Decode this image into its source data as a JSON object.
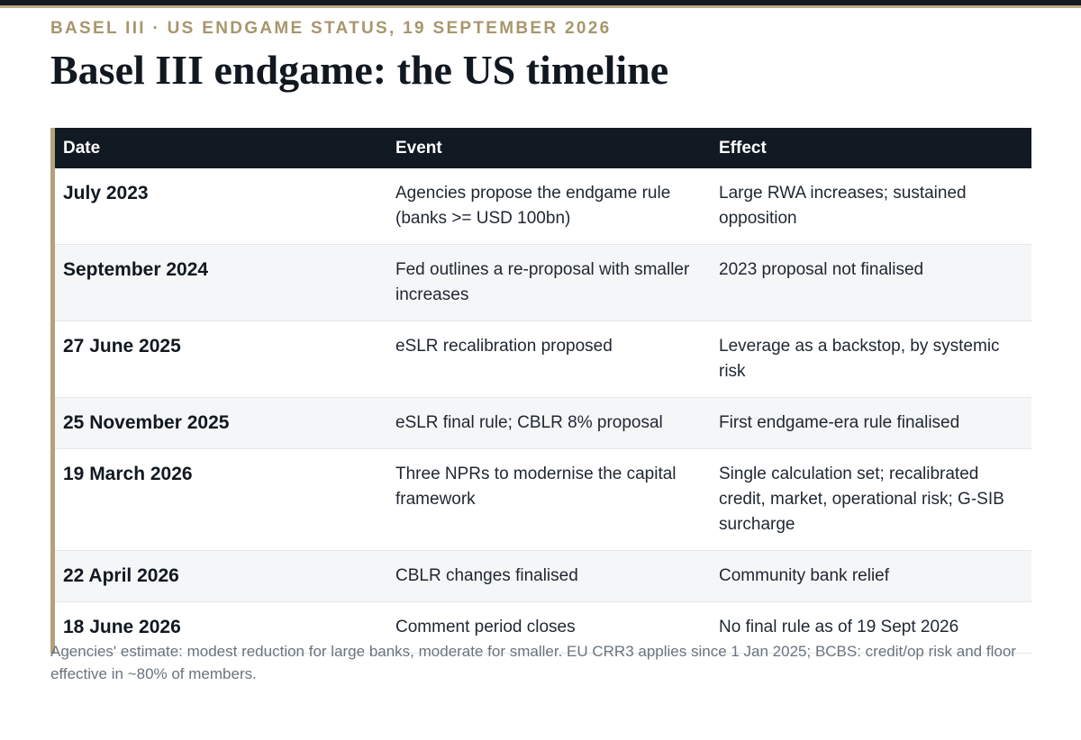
{
  "kicker": "BASEL III · US ENDGAME STATUS, 19 SEPTEMBER 2026",
  "title": "Basel III endgame: the US timeline",
  "table": {
    "headers": {
      "date": "Date",
      "event": "Event",
      "effect": "Effect"
    },
    "rows": [
      {
        "date": "July 2023",
        "event": "Agencies propose the endgame rule (banks >= USD 100bn)",
        "effect": "Large RWA increases; sustained opposition"
      },
      {
        "date": "September 2024",
        "event": "Fed outlines a re-proposal with smaller increases",
        "effect": "2023 proposal not finalised"
      },
      {
        "date": "27 June 2025",
        "event": "eSLR recalibration proposed",
        "effect": "Leverage as a backstop, by systemic risk"
      },
      {
        "date": "25 November 2025",
        "event": "eSLR final rule; CBLR 8% proposal",
        "effect": "First endgame-era rule finalised"
      },
      {
        "date": "19 March 2026",
        "event": "Three NPRs to modernise the capital framework",
        "effect": "Single calculation set; recalibrated credit, market, operational risk; G-SIB surcharge"
      },
      {
        "date": "22 April 2026",
        "event": "CBLR changes finalised",
        "effect": "Community bank relief"
      },
      {
        "date": "18 June 2026",
        "event": "Comment period closes",
        "effect": "No final rule as of 19 Sept 2026"
      }
    ]
  },
  "note": "Agencies' estimate: modest reduction for large banks, moderate for smaller. EU CRR3 applies since 1 Jan 2025; BCBS: credit/op risk and floor effective in ~80% of members.",
  "colors": {
    "accent": "#b3a27a",
    "header_bg": "#111922",
    "kicker": "#a8966c"
  }
}
